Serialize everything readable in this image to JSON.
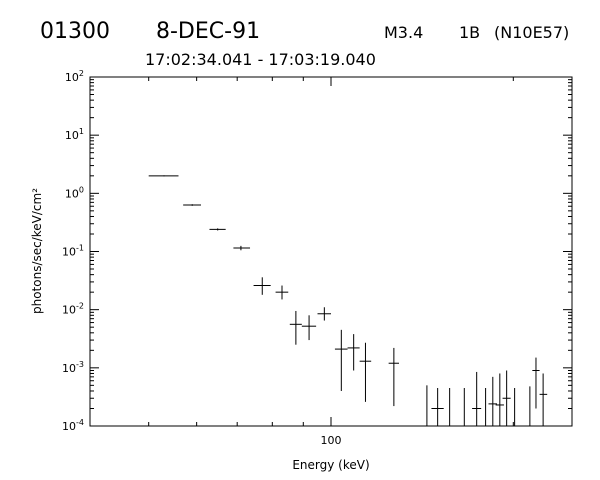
{
  "header": {
    "event_id": "01300",
    "date": "8-DEC-91",
    "goes_class": "M3.4",
    "optical_class": "1B",
    "location": "(N10E57)",
    "time_range": "17:02:34.041 - 17:03:19.040"
  },
  "chart_data": {
    "type": "scatter",
    "style": "error-bars",
    "x_scale": "log",
    "y_scale": "log",
    "xlabel": "Energy (keV)",
    "ylabel": "photons/sec/keV/cm²",
    "xlim": [
      40,
      250
    ],
    "ylim": [
      0.0001,
      100
    ],
    "x_tick_labels": [
      {
        "value": 100,
        "label": "100"
      }
    ],
    "y_tick_labels": [
      {
        "value": 0.0001,
        "base": "10",
        "exp": "-4"
      },
      {
        "value": 0.001,
        "base": "10",
        "exp": "-3"
      },
      {
        "value": 0.01,
        "base": "10",
        "exp": "-2"
      },
      {
        "value": 0.1,
        "base": "10",
        "exp": "-1"
      },
      {
        "value": 1,
        "base": "10",
        "exp": "0"
      },
      {
        "value": 10,
        "base": "10",
        "exp": "1"
      },
      {
        "value": 100,
        "base": "10",
        "exp": "2"
      }
    ],
    "points": [
      {
        "x": 53,
        "x_lo": 50,
        "x_hi": 56,
        "y": 2.0,
        "y_lo": 1.96,
        "y_hi": 2.04
      },
      {
        "x": 59,
        "x_lo": 57,
        "x_hi": 61,
        "y": 0.63,
        "y_lo": 0.61,
        "y_hi": 0.65
      },
      {
        "x": 65,
        "x_lo": 63,
        "x_hi": 67,
        "y": 0.24,
        "y_lo": 0.23,
        "y_hi": 0.25
      },
      {
        "x": 71,
        "x_lo": 69,
        "x_hi": 73.5,
        "y": 0.115,
        "y_lo": 0.105,
        "y_hi": 0.125
      },
      {
        "x": 77,
        "x_lo": 74.5,
        "x_hi": 79.5,
        "y": 0.026,
        "y_lo": 0.018,
        "y_hi": 0.036
      },
      {
        "x": 83,
        "x_lo": 81,
        "x_hi": 85,
        "y": 0.02,
        "y_lo": 0.015,
        "y_hi": 0.026
      },
      {
        "x": 87.5,
        "x_lo": 85.5,
        "x_hi": 89.5,
        "y": 0.0056,
        "y_lo": 0.0025,
        "y_hi": 0.0095
      },
      {
        "x": 92,
        "x_lo": 89.5,
        "x_hi": 94.5,
        "y": 0.0052,
        "y_lo": 0.003,
        "y_hi": 0.008
      },
      {
        "x": 97.5,
        "x_lo": 95,
        "x_hi": 100,
        "y": 0.0085,
        "y_lo": 0.0065,
        "y_hi": 0.011
      },
      {
        "x": 104,
        "x_lo": 101.5,
        "x_hi": 106.5,
        "y": 0.0021,
        "y_lo": 0.0004,
        "y_hi": 0.0045
      },
      {
        "x": 109,
        "x_lo": 106.5,
        "x_hi": 111.5,
        "y": 0.0022,
        "y_lo": 0.0009,
        "y_hi": 0.0038
      },
      {
        "x": 114,
        "x_lo": 111.5,
        "x_hi": 116.5,
        "y": 0.0013,
        "y_lo": 0.00026,
        "y_hi": 0.0027
      },
      {
        "x": 127,
        "x_lo": 124.5,
        "x_hi": 129.5,
        "y": 0.0012,
        "y_lo": 0.00022,
        "y_hi": 0.0022
      },
      {
        "x": 144,
        "x_lo": 142.5,
        "x_hi": 146,
        "y": 0.0001,
        "y_lo": 0.0001,
        "y_hi": 0.0005
      },
      {
        "x": 150,
        "x_lo": 146.5,
        "x_hi": 153.5,
        "y": 0.0002,
        "y_lo": 0.0001,
        "y_hi": 0.00045
      },
      {
        "x": 157,
        "x_lo": 155.5,
        "x_hi": 159,
        "y": 0.0001,
        "y_lo": 0.0001,
        "y_hi": 0.00045
      },
      {
        "x": 166,
        "x_lo": 164.5,
        "x_hi": 167.5,
        "y": 0.0001,
        "y_lo": 0.0001,
        "y_hi": 0.00045
      },
      {
        "x": 174,
        "x_lo": 171,
        "x_hi": 177,
        "y": 0.0002,
        "y_lo": 0.0001,
        "y_hi": 0.00085
      },
      {
        "x": 180,
        "x_lo": 179,
        "x_hi": 182,
        "y": 0.0001,
        "y_lo": 0.0001,
        "y_hi": 0.00045
      },
      {
        "x": 185,
        "x_lo": 182,
        "x_hi": 188,
        "y": 0.00024,
        "y_lo": 0.0001,
        "y_hi": 0.0007
      },
      {
        "x": 190,
        "x_lo": 187,
        "x_hi": 193,
        "y": 0.00023,
        "y_lo": 0.0001,
        "y_hi": 0.0008
      },
      {
        "x": 195,
        "x_lo": 192,
        "x_hi": 198,
        "y": 0.0003,
        "y_lo": 0.0001,
        "y_hi": 0.0009
      },
      {
        "x": 201,
        "x_lo": 199.5,
        "x_hi": 203,
        "y": 0.0001,
        "y_lo": 0.0001,
        "y_hi": 0.00045
      },
      {
        "x": 213,
        "x_lo": 212,
        "x_hi": 215,
        "y": 0.0001,
        "y_lo": 0.0001,
        "y_hi": 0.00048
      },
      {
        "x": 218,
        "x_lo": 215,
        "x_hi": 221,
        "y": 0.0009,
        "y_lo": 0.0002,
        "y_hi": 0.0015
      },
      {
        "x": 224,
        "x_lo": 221,
        "x_hi": 227.5,
        "y": 0.00035,
        "y_lo": 0.0001,
        "y_hi": 0.0008
      }
    ]
  }
}
